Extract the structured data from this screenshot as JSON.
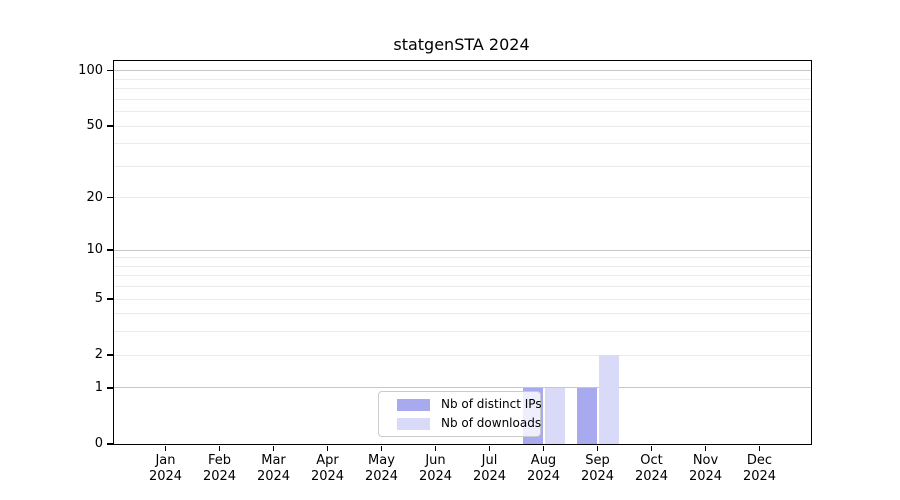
{
  "title": "statgenSTA 2024",
  "chart_data": {
    "type": "bar",
    "title": "statgenSTA 2024",
    "x_year_label": "2024",
    "categories": [
      "Jan",
      "Feb",
      "Mar",
      "Apr",
      "May",
      "Jun",
      "Jul",
      "Aug",
      "Sep",
      "Oct",
      "Nov",
      "Dec"
    ],
    "series": [
      {
        "name": "Nb of distinct IPs",
        "color": "#a9a9f0",
        "values": [
          0,
          0,
          0,
          0,
          0,
          0,
          0,
          1,
          1,
          0,
          0,
          0
        ]
      },
      {
        "name": "Nb of downloads",
        "color": "#d9d9f8",
        "values": [
          0,
          0,
          0,
          0,
          0,
          0,
          0,
          1,
          2,
          0,
          0,
          0
        ]
      }
    ],
    "yscale": "log1p",
    "ylim": [
      0,
      113
    ],
    "y_axis": {
      "tick_values": [
        0,
        1,
        2,
        5,
        10,
        20,
        50,
        100
      ],
      "tick_labels": [
        "0",
        "1",
        "2",
        "5",
        "10",
        "20",
        "50",
        "100"
      ],
      "minor_grid_values": [
        3,
        4,
        6,
        7,
        8,
        9,
        30,
        40,
        60,
        70,
        80,
        90
      ],
      "major_grid_values": [
        1,
        10,
        100
      ],
      "max_value": 113
    },
    "grid": true,
    "legend": {
      "position": "lower center",
      "frame": true
    },
    "colors": {
      "major_grid": "#c6c6c6",
      "minor_grid": "#ebebeb",
      "spine": "#000000",
      "text": "#000000"
    }
  }
}
